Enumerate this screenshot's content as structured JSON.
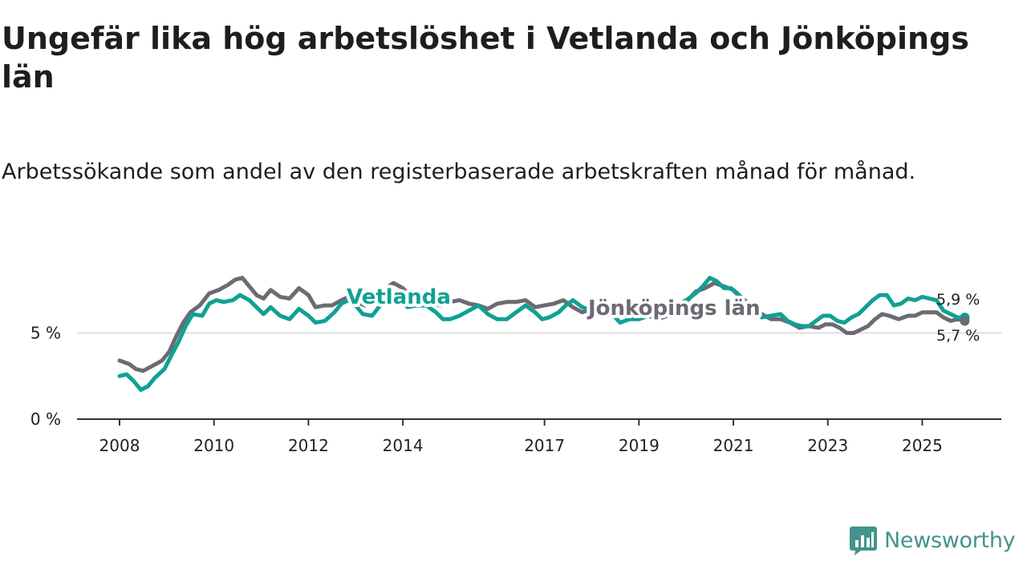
{
  "header": {
    "title": "Ungefär lika hög arbetslöshet i Vetlanda och Jönköpings län",
    "subtitle": "Arbetssökande som andel av den registerbaserade arbetskraften månad för månad."
  },
  "brand": {
    "name": "Newsworthy",
    "icon": "newsworthy-logo-icon",
    "color": "#43948c"
  },
  "chart_data": {
    "type": "line",
    "title": "Ungefär lika hög arbetslöshet i Vetlanda och Jönköpings län",
    "subtitle": "Arbetssökande som andel av den registerbaserade arbetskraften månad för månad.",
    "xlabel": "",
    "ylabel": "",
    "x_range": [
      2007.1,
      2026.6
    ],
    "ylim": [
      0,
      10
    ],
    "yticks": [
      0,
      5
    ],
    "ytick_labels": [
      "0 %",
      "5 %"
    ],
    "xticks": [
      2008,
      2010,
      2012,
      2014,
      2017,
      2019,
      2021,
      2023,
      2025
    ],
    "xtick_labels": [
      "2008",
      "2010",
      "2012",
      "2014",
      "2017",
      "2019",
      "2021",
      "2023",
      "2025"
    ],
    "grid": "horizontal",
    "series": [
      {
        "name": "Jönköpings län",
        "label": "Jönköpings län",
        "color": "#6c6a72",
        "end_label": "5,7 %",
        "points": [
          [
            2008.0,
            3.4
          ],
          [
            2008.2,
            3.2
          ],
          [
            2008.35,
            2.9
          ],
          [
            2008.5,
            2.8
          ],
          [
            2008.7,
            3.1
          ],
          [
            2008.9,
            3.4
          ],
          [
            2009.05,
            3.9
          ],
          [
            2009.2,
            4.8
          ],
          [
            2009.35,
            5.6
          ],
          [
            2009.5,
            6.2
          ],
          [
            2009.7,
            6.6
          ],
          [
            2009.9,
            7.3
          ],
          [
            2010.1,
            7.5
          ],
          [
            2010.3,
            7.8
          ],
          [
            2010.45,
            8.1
          ],
          [
            2010.6,
            8.2
          ],
          [
            2010.75,
            7.7
          ],
          [
            2010.9,
            7.2
          ],
          [
            2011.05,
            7.0
          ],
          [
            2011.2,
            7.5
          ],
          [
            2011.4,
            7.1
          ],
          [
            2011.6,
            7.0
          ],
          [
            2011.8,
            7.6
          ],
          [
            2012.0,
            7.2
          ],
          [
            2012.15,
            6.5
          ],
          [
            2012.35,
            6.6
          ],
          [
            2012.5,
            6.6
          ],
          [
            2012.7,
            6.9
          ],
          [
            2012.85,
            7.1
          ],
          [
            2013.0,
            6.8
          ],
          [
            2013.2,
            6.6
          ],
          [
            2013.4,
            7.0
          ],
          [
            2013.6,
            7.5
          ],
          [
            2013.8,
            7.9
          ],
          [
            2014.0,
            7.6
          ],
          [
            2014.2,
            7.0
          ],
          [
            2014.4,
            6.8
          ],
          [
            2014.6,
            6.7
          ],
          [
            2014.8,
            6.6
          ],
          [
            2015.0,
            6.8
          ],
          [
            2015.2,
            6.9
          ],
          [
            2015.4,
            6.7
          ],
          [
            2015.6,
            6.6
          ],
          [
            2015.8,
            6.4
          ],
          [
            2016.0,
            6.7
          ],
          [
            2016.2,
            6.8
          ],
          [
            2016.4,
            6.8
          ],
          [
            2016.6,
            6.9
          ],
          [
            2016.8,
            6.5
          ],
          [
            2017.0,
            6.6
          ],
          [
            2017.2,
            6.7
          ],
          [
            2017.4,
            6.9
          ],
          [
            2017.6,
            6.5
          ],
          [
            2017.8,
            6.2
          ],
          [
            2018.0,
            6.4
          ],
          [
            2018.2,
            6.4
          ],
          [
            2018.4,
            6.2
          ],
          [
            2018.6,
            6.1
          ],
          [
            2018.8,
            5.9
          ],
          [
            2019.0,
            5.9
          ],
          [
            2019.2,
            6.0
          ],
          [
            2019.4,
            5.8
          ],
          [
            2019.6,
            6.0
          ],
          [
            2019.8,
            6.3
          ],
          [
            2020.0,
            6.8
          ],
          [
            2020.2,
            7.4
          ],
          [
            2020.4,
            7.6
          ],
          [
            2020.6,
            7.9
          ],
          [
            2020.8,
            7.7
          ],
          [
            2021.0,
            7.5
          ],
          [
            2021.2,
            7.0
          ],
          [
            2021.4,
            6.5
          ],
          [
            2021.6,
            6.1
          ],
          [
            2021.8,
            5.8
          ],
          [
            2022.0,
            5.8
          ],
          [
            2022.2,
            5.6
          ],
          [
            2022.4,
            5.3
          ],
          [
            2022.6,
            5.4
          ],
          [
            2022.8,
            5.3
          ],
          [
            2022.95,
            5.5
          ],
          [
            2023.1,
            5.5
          ],
          [
            2023.25,
            5.3
          ],
          [
            2023.4,
            5.0
          ],
          [
            2023.55,
            5.0
          ],
          [
            2023.7,
            5.2
          ],
          [
            2023.85,
            5.4
          ],
          [
            2024.0,
            5.8
          ],
          [
            2024.15,
            6.1
          ],
          [
            2024.3,
            6.0
          ],
          [
            2024.5,
            5.8
          ],
          [
            2024.7,
            6.0
          ],
          [
            2024.85,
            6.0
          ],
          [
            2025.0,
            6.2
          ],
          [
            2025.15,
            6.2
          ],
          [
            2025.3,
            6.2
          ],
          [
            2025.45,
            5.9
          ],
          [
            2025.6,
            5.7
          ],
          [
            2025.75,
            5.8
          ],
          [
            2025.9,
            5.7
          ]
        ]
      },
      {
        "name": "Vetlanda",
        "label": "Vetlanda",
        "color": "#10a193",
        "end_label": "5,9 %",
        "points": [
          [
            2008.0,
            2.5
          ],
          [
            2008.15,
            2.6
          ],
          [
            2008.3,
            2.2
          ],
          [
            2008.45,
            1.7
          ],
          [
            2008.6,
            1.9
          ],
          [
            2008.75,
            2.4
          ],
          [
            2008.95,
            2.9
          ],
          [
            2009.1,
            3.7
          ],
          [
            2009.25,
            4.5
          ],
          [
            2009.4,
            5.4
          ],
          [
            2009.55,
            6.1
          ],
          [
            2009.75,
            6.0
          ],
          [
            2009.9,
            6.7
          ],
          [
            2010.05,
            6.9
          ],
          [
            2010.2,
            6.8
          ],
          [
            2010.4,
            6.9
          ],
          [
            2010.55,
            7.2
          ],
          [
            2010.75,
            6.9
          ],
          [
            2010.9,
            6.5
          ],
          [
            2011.05,
            6.1
          ],
          [
            2011.2,
            6.5
          ],
          [
            2011.4,
            6.0
          ],
          [
            2011.6,
            5.8
          ],
          [
            2011.8,
            6.4
          ],
          [
            2012.0,
            6.0
          ],
          [
            2012.15,
            5.6
          ],
          [
            2012.35,
            5.7
          ],
          [
            2012.55,
            6.2
          ],
          [
            2012.7,
            6.7
          ],
          [
            2012.85,
            6.9
          ],
          [
            2013.0,
            6.6
          ],
          [
            2013.15,
            6.1
          ],
          [
            2013.35,
            6.0
          ],
          [
            2013.55,
            6.7
          ],
          [
            2013.75,
            7.3
          ],
          [
            2013.95,
            6.9
          ],
          [
            2014.1,
            6.5
          ],
          [
            2014.3,
            6.6
          ],
          [
            2014.5,
            6.6
          ],
          [
            2014.7,
            6.2
          ],
          [
            2014.85,
            5.8
          ],
          [
            2015.0,
            5.8
          ],
          [
            2015.2,
            6.0
          ],
          [
            2015.4,
            6.3
          ],
          [
            2015.6,
            6.6
          ],
          [
            2015.8,
            6.1
          ],
          [
            2016.0,
            5.8
          ],
          [
            2016.2,
            5.8
          ],
          [
            2016.4,
            6.2
          ],
          [
            2016.6,
            6.6
          ],
          [
            2016.8,
            6.2
          ],
          [
            2016.95,
            5.8
          ],
          [
            2017.1,
            5.9
          ],
          [
            2017.3,
            6.2
          ],
          [
            2017.45,
            6.6
          ],
          [
            2017.6,
            6.9
          ],
          [
            2017.8,
            6.5
          ],
          [
            2018.0,
            6.3
          ],
          [
            2018.2,
            6.4
          ],
          [
            2018.4,
            6.2
          ],
          [
            2018.6,
            5.6
          ],
          [
            2018.8,
            5.8
          ],
          [
            2019.0,
            5.8
          ],
          [
            2019.2,
            6.0
          ],
          [
            2019.4,
            5.9
          ],
          [
            2019.6,
            6.2
          ],
          [
            2019.8,
            6.6
          ],
          [
            2020.0,
            6.9
          ],
          [
            2020.2,
            7.3
          ],
          [
            2020.35,
            7.7
          ],
          [
            2020.5,
            8.2
          ],
          [
            2020.65,
            8.0
          ],
          [
            2020.8,
            7.6
          ],
          [
            2020.95,
            7.6
          ],
          [
            2021.1,
            7.2
          ],
          [
            2021.25,
            6.8
          ],
          [
            2021.4,
            6.4
          ],
          [
            2021.6,
            5.9
          ],
          [
            2021.8,
            6.0
          ],
          [
            2022.0,
            6.1
          ],
          [
            2022.15,
            5.7
          ],
          [
            2022.3,
            5.5
          ],
          [
            2022.45,
            5.4
          ],
          [
            2022.6,
            5.4
          ],
          [
            2022.75,
            5.7
          ],
          [
            2022.9,
            6.0
          ],
          [
            2023.05,
            6.0
          ],
          [
            2023.2,
            5.7
          ],
          [
            2023.35,
            5.6
          ],
          [
            2023.5,
            5.9
          ],
          [
            2023.65,
            6.1
          ],
          [
            2023.8,
            6.5
          ],
          [
            2023.95,
            6.9
          ],
          [
            2024.1,
            7.2
          ],
          [
            2024.25,
            7.2
          ],
          [
            2024.4,
            6.6
          ],
          [
            2024.55,
            6.7
          ],
          [
            2024.7,
            7.0
          ],
          [
            2024.85,
            6.9
          ],
          [
            2025.0,
            7.1
          ],
          [
            2025.15,
            7.0
          ],
          [
            2025.3,
            6.9
          ],
          [
            2025.45,
            6.3
          ],
          [
            2025.6,
            6.1
          ],
          [
            2025.75,
            5.9
          ],
          [
            2025.9,
            5.9
          ]
        ]
      }
    ]
  }
}
